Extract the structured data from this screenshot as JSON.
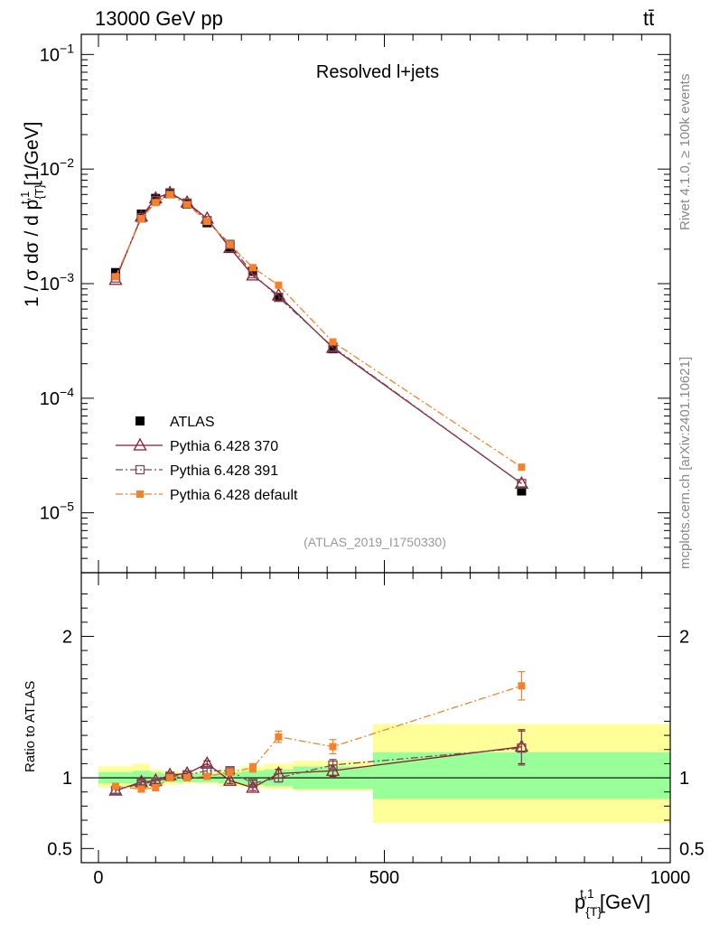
{
  "header": {
    "left": "13000 GeV pp",
    "right_base": "t",
    "right_bar": "t̄"
  },
  "side": {
    "rivet": "Rivet 4.1.0, ≥ 100k events",
    "mcplots": "mcplots.cern.ch [arXiv:2401.10621]"
  },
  "chart_data": {
    "type": "line",
    "title": "Resolved l+jets",
    "analysis_id": "(ATLAS_2019_I1750330)",
    "ylabel": "1 / σ dσ / d p_{T}^{t,1} [1/GeV]",
    "ylabel_parts": {
      "pre": "1 / σ dσ / d p",
      "sub": "{T}",
      "sup": "t,1",
      "post": " [1/GeV]"
    },
    "ratio_ylabel": "Ratio to ATLAS",
    "xlabel_parts": {
      "pre": "p",
      "sub": "{T}",
      "sup": "t,1",
      "post": " [GeV]"
    },
    "yscale": "log",
    "ylim": [
      3e-06,
      0.15
    ],
    "xlim": [
      -30,
      1000
    ],
    "ratio_ylim": [
      0.4,
      2.45
    ],
    "x_ticks": [
      0,
      500,
      1000
    ],
    "x_tick_labels": [
      "0",
      "500",
      "1000"
    ],
    "y_ticks": [
      1e-05,
      0.0001,
      0.001,
      0.01,
      0.1
    ],
    "y_tick_labels": [
      {
        "base": "10",
        "exp": "−5"
      },
      {
        "base": "10",
        "exp": "−4"
      },
      {
        "base": "10",
        "exp": "−3"
      },
      {
        "base": "10",
        "exp": "−2"
      },
      {
        "base": "10",
        "exp": "−1"
      }
    ],
    "ratio_ticks": [
      0.5,
      1,
      2
    ],
    "ratio_tick_labels": [
      "0.5",
      "1",
      "2"
    ],
    "legend_position": "bottom-left",
    "bins": [
      [
        0,
        60
      ],
      [
        60,
        90
      ],
      [
        90,
        110
      ],
      [
        110,
        140
      ],
      [
        140,
        170
      ],
      [
        170,
        210
      ],
      [
        210,
        250
      ],
      [
        250,
        290
      ],
      [
        290,
        340
      ],
      [
        340,
        480
      ],
      [
        480,
        1000
      ]
    ],
    "x": [
      30,
      75,
      100,
      125,
      155,
      190,
      230,
      270,
      315,
      410,
      740
    ],
    "data": {
      "name": "ATLAS",
      "values": [
        0.00125,
        0.00405,
        0.00555,
        0.0061,
        0.00495,
        0.0034,
        0.00208,
        0.00128,
        0.00076,
        0.00027,
        1.55e-05
      ],
      "band_green": [
        [
          0.96,
          1.04
        ],
        [
          0.95,
          1.05
        ],
        [
          0.96,
          1.04
        ],
        [
          0.97,
          1.03
        ],
        [
          0.97,
          1.03
        ],
        [
          0.97,
          1.03
        ],
        [
          0.96,
          1.04
        ],
        [
          0.95,
          1.05
        ],
        [
          0.94,
          1.06
        ],
        [
          0.92,
          1.08
        ],
        [
          0.85,
          1.18
        ]
      ],
      "band_yellow": [
        [
          0.93,
          1.08
        ],
        [
          0.93,
          1.1
        ],
        [
          0.94,
          1.06
        ],
        [
          0.95,
          1.05
        ],
        [
          0.96,
          1.04
        ],
        [
          0.96,
          1.04
        ],
        [
          0.94,
          1.06
        ],
        [
          0.93,
          1.08
        ],
        [
          0.92,
          1.1
        ],
        [
          0.91,
          1.12
        ],
        [
          0.68,
          1.38
        ]
      ]
    },
    "series": [
      {
        "name": "Pythia 6.428 370",
        "color": "#8b1a2b",
        "marker": "open-triangle",
        "linestyle": "solid",
        "values": [
          0.00108,
          0.00385,
          0.00555,
          0.0062,
          0.0051,
          0.0037,
          0.00205,
          0.00118,
          0.00079,
          0.000275,
          1.8e-05
        ],
        "ratio": [
          0.91,
          0.97,
          0.98,
          1.02,
          1.03,
          1.1,
          0.98,
          0.93,
          1.03,
          1.05,
          1.22
        ],
        "ratio_err": [
          0.02,
          0.02,
          0.02,
          0.02,
          0.02,
          0.02,
          0.02,
          0.02,
          0.03,
          0.04,
          0.12
        ]
      },
      {
        "name": "Pythia 6.428 391",
        "color": "#7a4a5e",
        "marker": "open-square",
        "linestyle": "dashdot",
        "values": [
          0.00112,
          0.00375,
          0.0053,
          0.0062,
          0.00505,
          0.00355,
          0.0022,
          0.00122,
          0.00076,
          0.00028,
          1.8e-05
        ],
        "ratio": [
          0.91,
          0.96,
          0.97,
          1.01,
          1.02,
          1.05,
          1.05,
          0.96,
          1.0,
          1.09,
          1.21
        ],
        "ratio_err": [
          0.02,
          0.02,
          0.02,
          0.02,
          0.02,
          0.02,
          0.02,
          0.02,
          0.03,
          0.04,
          0.12
        ]
      },
      {
        "name": "Pythia 6.428 default",
        "color": "#f5822a",
        "marker": "filled-square",
        "linestyle": "dashdot",
        "values": [
          0.00115,
          0.0037,
          0.0051,
          0.006,
          0.0049,
          0.0035,
          0.0022,
          0.00138,
          0.00097,
          0.00031,
          2.5e-05
        ],
        "ratio": [
          0.94,
          0.92,
          0.93,
          1.0,
          1.0,
          1.01,
          1.04,
          1.07,
          1.29,
          1.22,
          1.65
        ],
        "ratio_err": [
          0.02,
          0.02,
          0.02,
          0.02,
          0.02,
          0.02,
          0.02,
          0.03,
          0.04,
          0.05,
          0.1
        ]
      }
    ]
  }
}
